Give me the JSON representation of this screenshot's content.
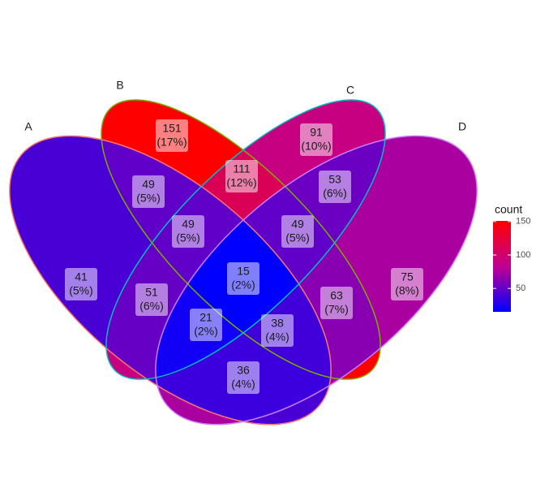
{
  "chart_data": {
    "type": "venn",
    "sets": [
      "A",
      "B",
      "C",
      "D"
    ],
    "regions": [
      {
        "count": 41,
        "percent": "(5%)"
      },
      {
        "count": 151,
        "percent": "(17%)"
      },
      {
        "count": 91,
        "percent": "(10%)"
      },
      {
        "count": 75,
        "percent": "(8%)"
      },
      {
        "count": 49,
        "percent": "(5%)"
      },
      {
        "count": 111,
        "percent": "(12%)"
      },
      {
        "count": 53,
        "percent": "(6%)"
      },
      {
        "count": 51,
        "percent": "(6%)"
      },
      {
        "count": 63,
        "percent": "(7%)"
      },
      {
        "count": 36,
        "percent": "(4%)"
      },
      {
        "count": 49,
        "percent": "(5%)"
      },
      {
        "count": 49,
        "percent": "(5%)"
      },
      {
        "count": 21,
        "percent": "(2%)"
      },
      {
        "count": 38,
        "percent": "(4%)"
      },
      {
        "count": 15,
        "percent": "(2%)"
      }
    ],
    "legend": {
      "title": "count",
      "lim": [
        15,
        151
      ],
      "ticks": [
        50,
        100,
        150
      ]
    }
  }
}
